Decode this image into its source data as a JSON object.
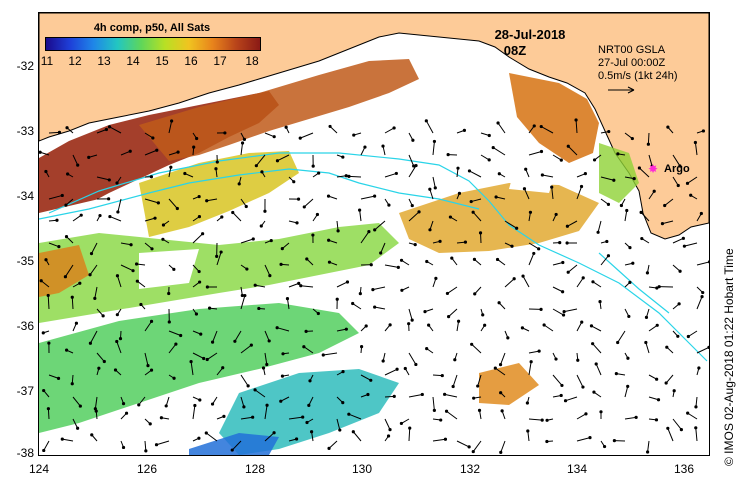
{
  "colorbar": {
    "title": "4h comp, p50, All Sats",
    "ticks": [
      "11",
      "12",
      "13",
      "14",
      "15",
      "16",
      "17",
      "18"
    ],
    "colors": [
      "#1a0a8c",
      "#1e3fd8",
      "#1f86e8",
      "#22c6c2",
      "#5fd65a",
      "#b8e024",
      "#f0c420",
      "#e8841c",
      "#b8441a",
      "#8a1a16"
    ]
  },
  "date": "28-Jul-2018",
  "time": "08Z",
  "current_info": {
    "line1": "NRT00 GSLA",
    "line2": "27-Jul 00:00Z",
    "line3": "0.5m/s (1kt 24h)"
  },
  "argo": {
    "label": "Argo",
    "color": "#ff2bd5"
  },
  "axes": {
    "y_ticks": [
      "-32",
      "-33",
      "-34",
      "-35",
      "-36",
      "-37",
      "-38"
    ],
    "x_ticks": [
      "124",
      "126",
      "128",
      "130",
      "132",
      "134",
      "136"
    ]
  },
  "credit": "© IMOS 02-Aug-2018 01:22 Hobart Time",
  "map": {
    "land_color": "#fdcb98",
    "ocean_color": "#ffffff",
    "track_color": "#2ad4e8",
    "sst_patches": [
      {
        "name": "bight-west-warm",
        "color": "#9a2a14"
      },
      {
        "name": "bight-central-warm",
        "color": "#c05a1a"
      },
      {
        "name": "bight-east-orange",
        "color": "#d87a1e"
      },
      {
        "name": "shelf-yellow",
        "color": "#d8c422"
      },
      {
        "name": "mid-green",
        "color": "#7ed432"
      },
      {
        "name": "south-green",
        "color": "#3cc84a"
      },
      {
        "name": "south-cyan",
        "color": "#22b8b8"
      },
      {
        "name": "south-blue",
        "color": "#2270d8"
      }
    ]
  }
}
